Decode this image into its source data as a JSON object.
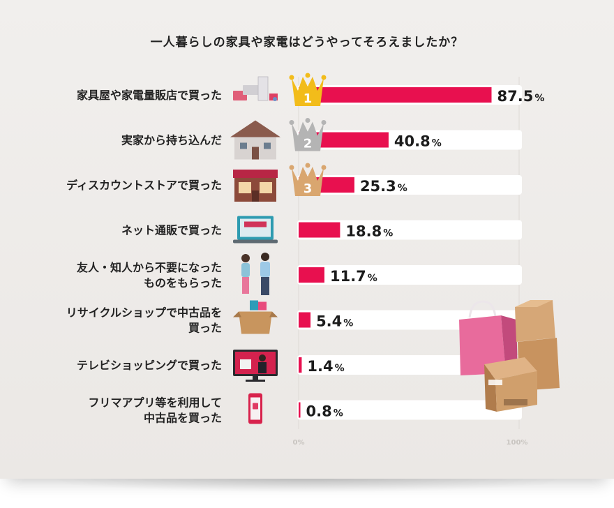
{
  "title": "一人暮らしの家具や家電はどうやってそろえましたか？",
  "colors": {
    "bar": "#e8104f",
    "track": "#ffffff",
    "gold": "#f2bc1a",
    "silver": "#b4b4b4",
    "bronze": "#d9a66f"
  },
  "chart_data": {
    "type": "bar",
    "orientation": "horizontal",
    "categories": [
      [
        "家具屋や家電量販店で買った"
      ],
      [
        "実家から持ち込んだ"
      ],
      [
        "ディスカウントストアで買った"
      ],
      [
        "ネット通販で買った"
      ],
      [
        "友人・知人から不要になった",
        "ものをもらった"
      ],
      [
        "リサイクルショップで中古品を",
        "買った"
      ],
      [
        "テレビショッピングで買った"
      ],
      [
        "フリマアプリ等を利用して",
        "中古品を買った"
      ]
    ],
    "values": [
      87.5,
      40.8,
      25.3,
      18.8,
      11.7,
      5.4,
      1.4,
      0.8
    ],
    "value_labels": [
      "87.5",
      "40.8",
      "25.3",
      "18.8",
      "11.7",
      "5.4",
      "1.4",
      "0.8"
    ],
    "unit": "%",
    "xlim": [
      0,
      100
    ],
    "ticks": [
      "0%",
      "100%"
    ],
    "rank_badges": [
      {
        "rank": "1",
        "icon": "gold-crown-icon"
      },
      {
        "rank": "2",
        "icon": "silver-crown-icon"
      },
      {
        "rank": "3",
        "icon": "bronze-crown-icon"
      }
    ],
    "row_icons": [
      "appliances-icon",
      "house-icon",
      "shop-storefront-icon",
      "online-shop-laptop-icon",
      "friends-people-icon",
      "secondhand-box-icon",
      "tv-shopping-icon",
      "smartphone-app-icon"
    ],
    "decoration": [
      "shopping-bag-icon",
      "cardboard-boxes-icon"
    ]
  }
}
